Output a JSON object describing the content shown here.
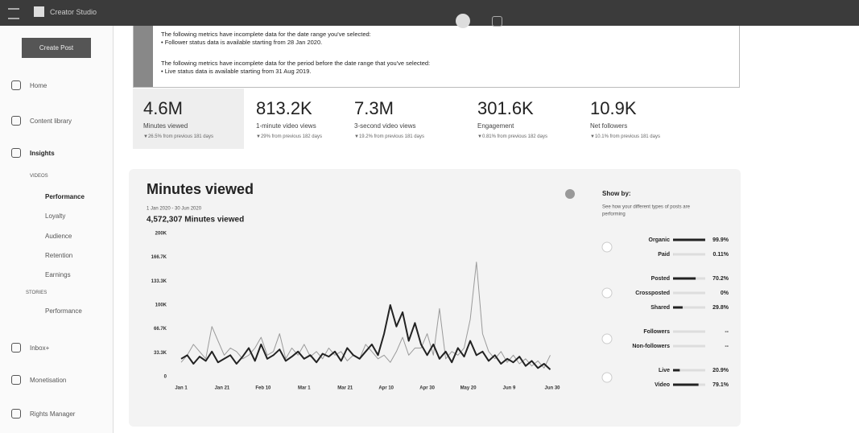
{
  "header": {
    "app": "Creator Studio"
  },
  "sidebar": {
    "create_post": "Create Post",
    "items": [
      "Home",
      "Content library",
      "Insights",
      "VIDEOS",
      "Performance",
      "Loyalty",
      "Audience",
      "Retention",
      "Earnings",
      "STORIES",
      "Performance",
      "Inbox+",
      "Monetisation",
      "Rights Manager"
    ]
  },
  "notice": {
    "lines": [
      "The following metrics have incomplete data for the date range you've selected:",
      "• Follower status data is available starting from 28 Jan 2020.",
      "The following metrics have incomplete data for the period before the date range that you've selected:",
      "• Live status data is available starting from 31 Aug 2019."
    ]
  },
  "metrics": [
    {
      "value": "4.6M",
      "label": "Minutes viewed",
      "change": "▼26.5% from previous 181 days"
    },
    {
      "value": "813.2K",
      "label": "1-minute video views",
      "change": "▼29% from previous 182 days"
    },
    {
      "value": "7.3M",
      "label": "3-second video views",
      "change": "▼19.2% from previous 181 days"
    },
    {
      "value": "301.6K",
      "label": "Engagement",
      "change": "▼0.81% from previous 182 days"
    },
    {
      "value": "10.9K",
      "label": "Net followers",
      "change": "▼10.1% from previous 181 days"
    }
  ],
  "chart_data": {
    "type": "line",
    "title": "Minutes viewed",
    "subtitle": "1 Jan 2020 - 30 Jun 2020",
    "total": "4,572,307 Minutes viewed",
    "x": [
      0,
      3,
      6,
      9,
      12,
      15,
      18,
      21,
      24,
      27,
      30,
      33,
      36,
      39,
      42,
      45,
      48,
      51,
      54,
      57,
      60,
      63,
      66,
      69,
      72,
      75,
      78,
      81,
      84,
      87,
      90,
      93,
      96,
      99,
      102,
      105,
      108,
      111,
      114,
      117,
      120,
      123,
      126,
      129,
      132,
      135,
      138,
      141,
      144,
      147,
      150,
      153,
      156,
      159,
      162,
      165,
      168,
      171,
      174,
      177,
      180
    ],
    "series": [
      {
        "color": "#222222",
        "values": [
          25000,
          30000,
          18000,
          28000,
          22000,
          35000,
          20000,
          25000,
          30000,
          18000,
          28000,
          40000,
          22000,
          45000,
          25000,
          30000,
          38000,
          22000,
          28000,
          35000,
          25000,
          30000,
          20000,
          32000,
          28000,
          35000,
          22000,
          40000,
          30000,
          25000,
          35000,
          45000,
          30000,
          60000,
          100000,
          70000,
          90000,
          50000,
          75000,
          45000,
          30000,
          45000,
          25000,
          35000,
          20000,
          40000,
          28000,
          50000,
          30000,
          35000,
          22000,
          30000,
          18000,
          25000,
          20000,
          28000,
          15000,
          22000,
          12000,
          18000,
          10000
        ]
      },
      {
        "color": "#9a9a9a",
        "values": [
          20000,
          30000,
          45000,
          35000,
          25000,
          70000,
          50000,
          30000,
          40000,
          35000,
          25000,
          30000,
          40000,
          55000,
          30000,
          35000,
          60000,
          25000,
          40000,
          30000,
          45000,
          28000,
          35000,
          25000,
          40000,
          30000,
          35000,
          22000,
          30000,
          25000,
          45000,
          35000,
          25000,
          30000,
          20000,
          35000,
          55000,
          30000,
          40000,
          40000,
          60000,
          30000,
          95000,
          25000,
          35000,
          30000,
          40000,
          80000,
          160000,
          60000,
          35000,
          25000,
          35000,
          20000,
          30000,
          18000,
          25000,
          15000,
          22000,
          12000,
          30000
        ]
      }
    ],
    "xlim": [
      0,
      181
    ],
    "xticks": [
      {
        "value": 0,
        "label": "Jan 1"
      },
      {
        "value": 20,
        "label": "Jan 21"
      },
      {
        "value": 40,
        "label": "Feb 10"
      },
      {
        "value": 60,
        "label": "Mar 1"
      },
      {
        "value": 80,
        "label": "Mar 21"
      },
      {
        "value": 100,
        "label": "Apr 10"
      },
      {
        "value": 120,
        "label": "Apr 30"
      },
      {
        "value": 140,
        "label": "May 20"
      },
      {
        "value": 160,
        "label": "Jun 9"
      },
      {
        "value": 181,
        "label": "Jun 30"
      }
    ],
    "ylim": [
      0,
      200000
    ],
    "yticks": [
      0,
      {
        "value": 33333,
        "label": "33.3K"
      },
      {
        "value": 66667,
        "label": "66.7K"
      },
      {
        "value": 100000,
        "label": "100K"
      },
      {
        "value": 133333,
        "label": "133.3K"
      },
      {
        "value": 166667,
        "label": "166.7K"
      },
      {
        "value": 200000,
        "label": "200K"
      }
    ]
  },
  "show_by": {
    "title": "Show by:",
    "subtitle": [
      "See how your different types of posts are",
      "performing"
    ],
    "groups": [
      {
        "items": [
          {
            "label": "Organic",
            "value": 99.9,
            "value_label": "99.9%"
          },
          {
            "label": "Paid",
            "value": 0.11,
            "value_label": "0.11%"
          }
        ]
      },
      {
        "items": [
          {
            "label": "Posted",
            "value": 70.2,
            "value_label": "70.2%"
          },
          {
            "label": "Crossposted",
            "value": 0,
            "value_label": "0%"
          },
          {
            "label": "Shared",
            "value": 29.8,
            "value_label": "29.8%"
          }
        ]
      },
      {
        "items": [
          {
            "label": "Followers",
            "value": null,
            "value_label": "--"
          },
          {
            "label": "Non-followers",
            "value": null,
            "value_label": "--"
          }
        ]
      },
      {
        "items": [
          {
            "label": "Live",
            "value": 20.9,
            "value_label": "20.9%"
          },
          {
            "label": "Video",
            "value": 79.1,
            "value_label": "79.1%"
          }
        ]
      }
    ]
  }
}
